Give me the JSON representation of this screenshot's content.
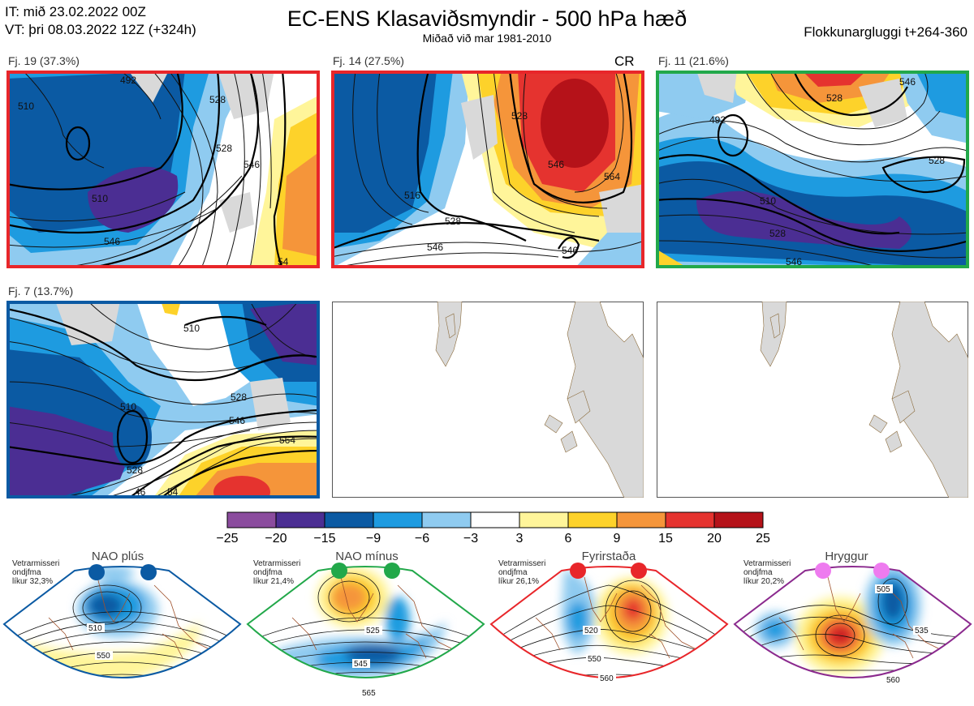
{
  "header": {
    "line1": "IT: mið 23.02.2022 00Z",
    "line2": "VT: þri 08.03.2022 12Z  (+324h)",
    "title": "EC-ENS Klasaviðsmyndir - 500 hPa hæð",
    "subtitle": "Miðað við mar 1981-2010",
    "window": "Flokkunargluggi t+264-360"
  },
  "panels": [
    {
      "label": "Fj. 19 (37.3%)",
      "border": "#e8262a",
      "contours": [
        "492",
        "510",
        "528",
        "546",
        "510",
        "528",
        "546",
        "54"
      ]
    },
    {
      "label": "Fj. 14 (27.5%)",
      "border": "#e8262a",
      "cr": "CR",
      "contours": [
        "516",
        "528",
        "546",
        "564",
        "528",
        "546",
        "546"
      ]
    },
    {
      "label": "Fj. 11 (21.6%)",
      "border": "#22a84a",
      "contours": [
        "492",
        "510",
        "528",
        "528",
        "528",
        "546",
        "546"
      ]
    },
    {
      "label": "Fj. 7 (13.7%)",
      "border": "#0b5aa3",
      "contours": [
        "510",
        "510",
        "528",
        "546",
        "564",
        "528",
        "46",
        "54"
      ]
    }
  ],
  "colorbar": {
    "colors": [
      "#8b4c9e",
      "#4b2e93",
      "#0b5aa3",
      "#1e9be0",
      "#8fcbf0",
      "#ffffff",
      "#fff59a",
      "#fdd22a",
      "#f5953a",
      "#e5332f",
      "#b51219"
    ],
    "ticks": [
      "−25",
      "−20",
      "−15",
      "−9",
      "−6",
      "−3",
      "3",
      "6",
      "9",
      "15",
      "20",
      "25"
    ]
  },
  "regimes": [
    {
      "name": "NAO plús",
      "color": "#0b5aa3",
      "note1": "Vetrarmisseri",
      "note2": "ondjfma",
      "note3": "líkur 32,3%",
      "labels": [
        "510",
        "550"
      ]
    },
    {
      "name": "NAO mínus",
      "color": "#22a84a",
      "note1": "Vetrarmisseri",
      "note2": "ondjfma",
      "note3": "líkur 21,4%",
      "labels": [
        "525",
        "545",
        "565"
      ]
    },
    {
      "name": "Fyrirstaða",
      "color": "#e8262a",
      "note1": "Vetrarmisseri",
      "note2": "ondjfma",
      "note3": "líkur 26,1%",
      "labels": [
        "520",
        "550",
        "560"
      ]
    },
    {
      "name": "Hryggur",
      "color": "#8b2a8e",
      "note1": "Vetrarmisseri",
      "note2": "ondjfma",
      "note3": "líkur 20,2%",
      "labels": [
        "505",
        "535",
        "560"
      ]
    }
  ]
}
